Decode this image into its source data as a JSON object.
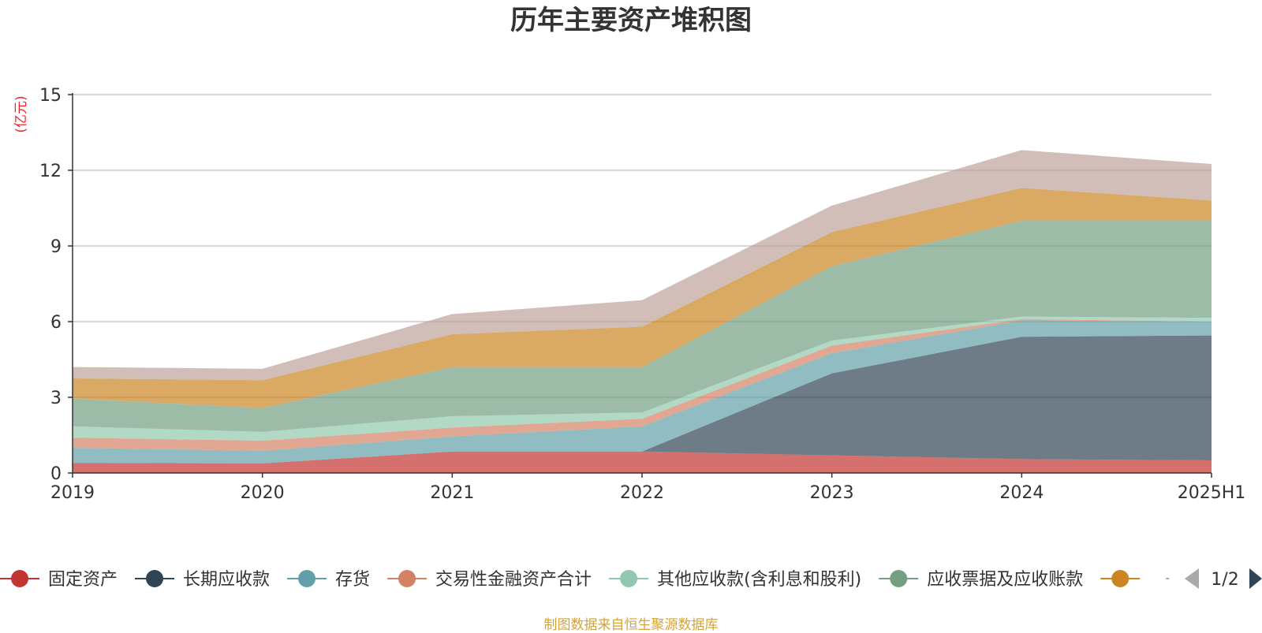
{
  "chart_data": {
    "type": "area",
    "stacked": true,
    "title": "历年主要资产堆积图",
    "ylabel": "(亿元)",
    "ylim": [
      0,
      15
    ],
    "yticks": [
      "0",
      "3",
      "6",
      "9",
      "12",
      "15"
    ],
    "categories": [
      "2019",
      "2020",
      "2021",
      "2022",
      "2023",
      "2024",
      "2025H1"
    ],
    "grid": true,
    "series": [
      {
        "name": "固定资产",
        "color": "#c23531",
        "values": [
          0.4,
          0.38,
          0.85,
          0.85,
          0.7,
          0.55,
          0.5
        ]
      },
      {
        "name": "长期应收款",
        "color": "#2f4554",
        "values": [
          0,
          0,
          0,
          0,
          3.25,
          4.85,
          4.95
        ]
      },
      {
        "name": "存货",
        "color": "#61a0a8",
        "values": [
          0.6,
          0.5,
          0.6,
          1.0,
          0.8,
          0.65,
          0.55
        ]
      },
      {
        "name": "交易性金融资产合计",
        "color": "#d48265",
        "values": [
          0.4,
          0.4,
          0.35,
          0.3,
          0.3,
          0.05,
          0.0
        ]
      },
      {
        "name": "其他应收款(含利息和股利)",
        "color": "#91c7ae",
        "values": [
          0.45,
          0.35,
          0.45,
          0.25,
          0.2,
          0.1,
          0.15
        ]
      },
      {
        "name": "应收票据及应收账款",
        "color": "#749f83",
        "values": [
          1.1,
          0.95,
          1.95,
          1.8,
          2.95,
          3.8,
          3.85
        ]
      },
      {
        "name": "",
        "color": "#ca8622",
        "values": [
          0.8,
          1.1,
          1.3,
          1.6,
          1.35,
          1.3,
          0.8
        ]
      },
      {
        "name": "",
        "color": "#bda29a",
        "values": [
          0.45,
          0.45,
          0.8,
          1.05,
          1.05,
          1.5,
          1.45
        ]
      }
    ],
    "legend": {
      "placement": "bottom",
      "page_indicator": "1/2"
    }
  },
  "footer": {
    "source_text": "制图数据来自恒生聚源数据库"
  }
}
